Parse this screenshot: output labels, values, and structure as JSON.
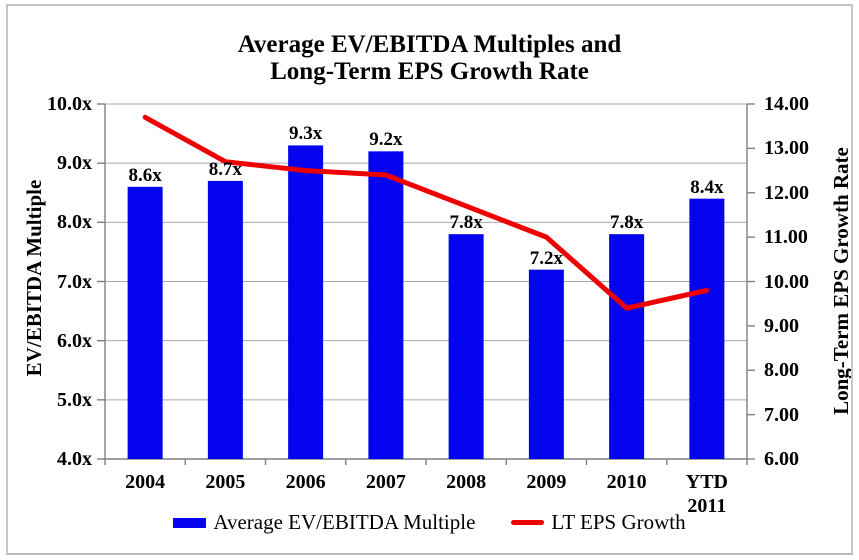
{
  "header": {
    "title_line1": "Average EV/EBITDA Multiples and",
    "title_line2": "Long-Term EPS Growth Rate"
  },
  "chart_data": {
    "type": "bar+line combo, dual y-axes",
    "title": "Average EV/EBITDA Multiples and Long-Term EPS Growth Rate",
    "categories": [
      "2004",
      "2005",
      "2006",
      "2007",
      "2008",
      "2009",
      "2010",
      "YTD\n2011"
    ],
    "series": [
      {
        "name": "Average EV/EBITDA Multiple",
        "type": "bar",
        "axis": "left",
        "values": [
          8.6,
          8.7,
          9.3,
          9.2,
          7.8,
          7.2,
          7.8,
          8.4
        ],
        "labels": [
          "8.6x",
          "8.7x",
          "9.3x",
          "9.2x",
          "7.8x",
          "7.2x",
          "7.8x",
          "8.4x"
        ]
      },
      {
        "name": "LT EPS Growth",
        "type": "line",
        "axis": "right",
        "values": [
          13.7,
          12.7,
          12.5,
          12.4,
          11.7,
          11.0,
          9.4,
          9.8
        ]
      }
    ],
    "left_axis": {
      "title": "EV/EBITDA Multiple",
      "min": 4,
      "max": 10,
      "step": 1,
      "tick_labels": [
        "4.0x",
        "5.0x",
        "6.0x",
        "7.0x",
        "8.0x",
        "9.0x",
        "10.0x"
      ]
    },
    "right_axis": {
      "title": "Long-Term EPS Growth Rate",
      "min": 6,
      "max": 14,
      "step": 1,
      "tick_labels": [
        "6.00",
        "7.00",
        "8.00",
        "9.00",
        "10.00",
        "11.00",
        "12.00",
        "13.00",
        "14.00"
      ]
    },
    "grid": "horizontal gridlines at left-axis integers",
    "legend_position": "bottom"
  },
  "colors": {
    "bar": "#0404ee",
    "line": "#ee0000",
    "grid": "#a8a8a8",
    "axis": "#7f7f7f",
    "text": "#000000",
    "frame": "#c6c6c6"
  }
}
